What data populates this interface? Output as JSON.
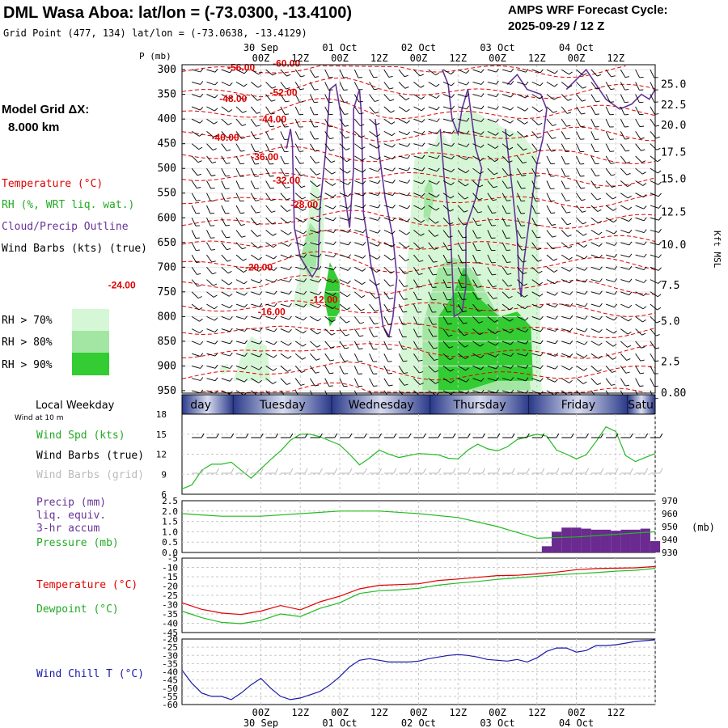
{
  "header": {
    "title": "DML Wasa Aboa:  lat/lon = (-73.0300, -13.4100)",
    "subtitle": "Grid Point (477, 134) lat/lon = (-73.0638, -13.4129)",
    "cycle_label": "AMPS WRF Forecast Cycle:",
    "cycle_value": "2025-09-29 / 12  Z"
  },
  "left_legend": {
    "grid_label": "Model Grid ΔX:",
    "grid_value": "8.000 km",
    "temperature": "Temperature (°C)",
    "rh": "RH (%, WRT liq. wat.)",
    "cloud": "Cloud/Precip Outline",
    "wind": "Wind Barbs (kts) (true)",
    "rh70": "RH > 70%",
    "rh80": "RH > 80%",
    "rh90": "RH > 90%",
    "rh_colors": [
      "#d6f7d6",
      "#a3e6a3",
      "#33cc33"
    ]
  },
  "colors": {
    "temperature_contour": "#e00000",
    "cloud_outline": "#663399",
    "wind_speed": "#22bb22",
    "precip": "#6a2a8f",
    "pressure": "#22bb22",
    "temperature": "#e00000",
    "dewpoint": "#22bb22",
    "wind_chill": "#1a1aaa",
    "barbs_true": "#000000",
    "barbs_grid": "#bbbbbb",
    "weekday_band": "#2a3a8a"
  },
  "time_axis": {
    "top_dates": [
      "30 Sep",
      "01 Oct",
      "02 Oct",
      "03 Oct",
      "04 Oct"
    ],
    "bottom_dates": [
      "30 Sep",
      "01 Oct",
      "02 Oct",
      "03 Oct",
      "04 Oct"
    ],
    "hour_labels": [
      "00Z",
      "12Z",
      "00Z",
      "12Z",
      "00Z",
      "12Z",
      "00Z",
      "12Z",
      "00Z",
      "12Z"
    ]
  },
  "weekdays": {
    "title": "Local Weekday",
    "labels": [
      "day",
      "Tuesday",
      "Wednesday",
      "Thursday",
      "Friday",
      "Satu"
    ]
  },
  "chart_data": [
    {
      "type": "heatmap",
      "title": "",
      "ylabel": "P (mb)",
      "y2label": "Kft MSL",
      "ylim": [
        955,
        290
      ],
      "x": [
        "30 Sep 00Z",
        "30 Sep 12Z",
        "01 Oct 00Z",
        "01 Oct 12Z",
        "02 Oct 00Z",
        "02 Oct 12Z",
        "03 Oct 00Z",
        "03 Oct 12Z",
        "04 Oct 00Z",
        "04 Oct 12Z"
      ],
      "pressure_ticks": [
        300,
        350,
        400,
        450,
        500,
        550,
        600,
        650,
        700,
        750,
        800,
        850,
        900,
        950
      ],
      "height_ticks": [
        {
          "p": 330,
          "label": "25.0"
        },
        {
          "p": 372,
          "label": "22.5"
        },
        {
          "p": 413,
          "label": "20.0"
        },
        {
          "p": 468,
          "label": "17.5"
        },
        {
          "p": 522,
          "label": "15.0"
        },
        {
          "p": 589,
          "label": "12.5"
        },
        {
          "p": 655,
          "label": "10.0"
        },
        {
          "p": 737,
          "label": "7.5"
        },
        {
          "p": 810,
          "label": "5.0"
        },
        {
          "p": 892,
          "label": "2.5"
        },
        {
          "p": 955,
          "label": "0.80"
        }
      ],
      "temperature_labels": [
        {
          "t": -3.4,
          "p": 302,
          "label": "-56.00"
        },
        {
          "t": 1.2,
          "p": 294,
          "label": "-60.00"
        },
        {
          "t": -4.2,
          "p": 365,
          "label": "-48.00"
        },
        {
          "t": 0.9,
          "p": 353,
          "label": "-52.00"
        },
        {
          "t": -0.2,
          "p": 407,
          "label": "-44.00"
        },
        {
          "t": -5.0,
          "p": 444,
          "label": "-40.00"
        },
        {
          "t": -1.0,
          "p": 483,
          "label": "-36.00"
        },
        {
          "t": 1.2,
          "p": 531,
          "label": "-32.00"
        },
        {
          "t": 3.0,
          "p": 580,
          "label": "-28.00"
        },
        {
          "t": -1.6,
          "p": 707,
          "label": "-20.00"
        },
        {
          "t": -15.5,
          "p": 743,
          "label": "-24.00"
        },
        {
          "t": -0.3,
          "p": 797,
          "label": "-16.00"
        },
        {
          "t": 5.0,
          "p": 772,
          "label": "-12.00"
        }
      ]
    },
    {
      "type": "line",
      "title": "Wind Spd (kts)",
      "ylim": [
        6,
        18
      ],
      "yticks": [
        6,
        9,
        12,
        15,
        18
      ],
      "x": [
        -8,
        -7,
        -6,
        -5,
        -4,
        -3,
        -2,
        -1,
        0,
        1,
        2,
        3,
        4,
        5,
        6,
        7,
        8,
        9,
        10,
        11,
        12,
        13,
        14,
        15,
        16,
        17,
        18,
        19,
        20,
        21,
        22,
        23,
        24,
        25,
        26,
        27,
        28,
        29,
        30,
        31,
        32,
        33,
        34,
        35,
        36,
        37,
        38,
        39,
        40
      ],
      "series": [
        {
          "name": "Wind Spd (kts)",
          "values": [
            6.8,
            7.4,
            9.6,
            10.5,
            10.5,
            10.8,
            9.6,
            8.4,
            9.8,
            11.2,
            12.5,
            14.1,
            15.0,
            15.0,
            14.6,
            14.0,
            13.4,
            12.0,
            10.4,
            11.4,
            12.6,
            12.0,
            11.5,
            11.8,
            12.1,
            12.0,
            11.9,
            11.4,
            11.3,
            12.6,
            13.5,
            12.8,
            12.5,
            13.1,
            14.2,
            14.6,
            15.0,
            14.7,
            12.6,
            12.0,
            11.3,
            11.9,
            13.9,
            16.1,
            15.4,
            11.8,
            10.9,
            11.5,
            12.1
          ]
        }
      ]
    },
    {
      "type": "bar",
      "title": "Precip (mm) liq. equiv. 3-hr accum",
      "ylim": [
        0,
        2.5
      ],
      "yticks": [
        0.0,
        0.5,
        1.0,
        1.5,
        2.0,
        2.5
      ],
      "x": [
        29,
        30,
        31,
        32,
        33,
        34,
        35,
        36,
        37,
        38,
        39,
        40
      ],
      "values": [
        0.3,
        1.0,
        1.2,
        1.2,
        1.15,
        1.1,
        1.1,
        1.05,
        1.1,
        1.1,
        1.15,
        0.55
      ]
    },
    {
      "type": "line",
      "title": "Pressure (mb)",
      "ylabel": "(mb)",
      "ylim": [
        930,
        970
      ],
      "yticks": [
        930,
        940,
        950,
        960,
        970
      ],
      "x": [
        -8,
        -4,
        0,
        4,
        8,
        12,
        16,
        20,
        24,
        28,
        32,
        36,
        40
      ],
      "series": [
        {
          "name": "Pressure (mb)",
          "values": [
            960,
            958,
            958,
            960,
            962,
            962,
            960,
            957,
            950,
            941,
            942,
            944,
            946
          ]
        }
      ]
    },
    {
      "type": "line",
      "title": "Temperature (°C)",
      "ylim": [
        -45,
        -5
      ],
      "yticks": [
        -45,
        -40,
        -35,
        -30,
        -25,
        -20,
        -15,
        -10,
        -5
      ],
      "x": [
        -8,
        -6,
        -4,
        -2,
        0,
        2,
        4,
        6,
        8,
        10,
        12,
        14,
        16,
        18,
        20,
        22,
        24,
        26,
        28,
        30,
        32,
        34,
        36,
        38,
        40
      ],
      "series": [
        {
          "name": "Temperature (°C)",
          "values": [
            -29,
            -32.5,
            -34.5,
            -35.3,
            -33.5,
            -30.5,
            -32.8,
            -28.5,
            -25.5,
            -21.5,
            -19.6,
            -19.2,
            -18.8,
            -17.0,
            -16.2,
            -15.3,
            -14.4,
            -14.2,
            -13.5,
            -12.5,
            -11.2,
            -10.6,
            -10.4,
            -10.2,
            -9.5
          ]
        },
        {
          "name": "Dewpoint (°C)",
          "values": [
            -33.5,
            -37.0,
            -39.5,
            -40.2,
            -38.5,
            -35.0,
            -36.4,
            -32.0,
            -29.0,
            -24.0,
            -22.5,
            -22.0,
            -21.2,
            -19.5,
            -18.4,
            -17.5,
            -16.4,
            -15.6,
            -14.8,
            -14.0,
            -13.4,
            -12.8,
            -12.0,
            -11.5,
            -10.5
          ]
        }
      ]
    },
    {
      "type": "line",
      "title": "Wind Chill T (°C)",
      "ylim": [
        -60,
        -20
      ],
      "yticks": [
        -60,
        -55,
        -50,
        -45,
        -40,
        -35,
        -30,
        -25,
        -20
      ],
      "x": [
        -8,
        -7,
        -6,
        -5,
        -4,
        -3,
        -2,
        -1,
        0,
        1,
        2,
        3,
        4,
        5,
        6,
        7,
        8,
        9,
        10,
        11,
        12,
        13,
        14,
        15,
        16,
        17,
        18,
        19,
        20,
        21,
        22,
        23,
        24,
        25,
        26,
        27,
        28,
        29,
        30,
        31,
        32,
        33,
        34,
        35,
        36,
        37,
        38,
        39,
        40
      ],
      "series": [
        {
          "name": "Wind Chill T (°C)",
          "values": [
            -39,
            -47,
            -53,
            -55,
            -55,
            -57,
            -53,
            -48,
            -44,
            -50,
            -55,
            -57,
            -56,
            -54,
            -52,
            -48,
            -43,
            -37,
            -33,
            -32,
            -33,
            -34,
            -34,
            -34,
            -33.5,
            -32,
            -31,
            -30,
            -29.5,
            -30,
            -31,
            -32.5,
            -33,
            -33.5,
            -32.5,
            -34,
            -31.5,
            -27.5,
            -25.5,
            -25.5,
            -28,
            -27,
            -24,
            -24,
            -23.5,
            -22.5,
            -21.5,
            -21,
            -20.5
          ]
        }
      ]
    }
  ],
  "bottom_legends": {
    "wind_at": "Wind at 10 m",
    "wind_spd": "Wind Spd (kts)",
    "barbs_true": "Wind Barbs (true)",
    "barbs_grid": "Wind Barbs (grid)",
    "precip1": "Precip (mm)",
    "precip2": "liq. equiv.",
    "precip3": "3-hr accum",
    "pressure": "Pressure (mb)",
    "temperature": "Temperature (°C)",
    "dewpoint": "Dewpoint (°C)",
    "windchill": "Wind Chill T (°C)"
  }
}
